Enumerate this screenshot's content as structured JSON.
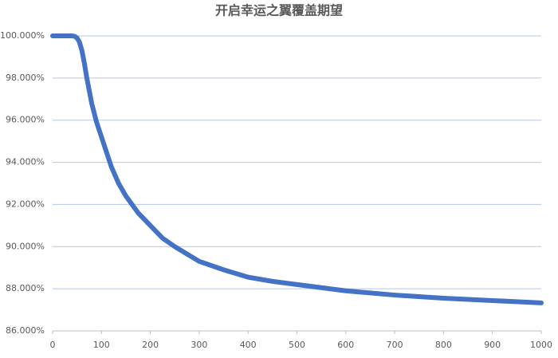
{
  "chart_data": {
    "type": "line",
    "title": "开启幸运之翼覆盖期望",
    "x": [
      0,
      10,
      20,
      30,
      40,
      45,
      50,
      55,
      60,
      65,
      70,
      75,
      80,
      90,
      100,
      110,
      120,
      135,
      150,
      175,
      200,
      225,
      250,
      300,
      350,
      400,
      450,
      500,
      600,
      700,
      800,
      900,
      1000
    ],
    "series": [
      {
        "name": "覆盖期望",
        "color": "#4472c4",
        "values": [
          100,
          100,
          100,
          100,
          100,
          99.98,
          99.9,
          99.7,
          99.3,
          98.7,
          98.0,
          97.4,
          96.8,
          95.9,
          95.2,
          94.5,
          93.8,
          93.0,
          92.4,
          91.6,
          91.0,
          90.4,
          90.0,
          89.3,
          88.9,
          88.55,
          88.35,
          88.2,
          87.9,
          87.7,
          87.55,
          87.44,
          87.33
        ]
      }
    ],
    "xlim": [
      0,
      1000
    ],
    "xticks": [
      0,
      100,
      200,
      300,
      400,
      500,
      600,
      700,
      800,
      900,
      1000
    ],
    "ylim": [
      86,
      100
    ],
    "yticks": [
      {
        "value": 86,
        "label": "86.000%"
      },
      {
        "value": 88,
        "label": "88.000%"
      },
      {
        "value": 90,
        "label": "90.000%"
      },
      {
        "value": 92,
        "label": "92.000%"
      },
      {
        "value": 94,
        "label": "94.000%"
      },
      {
        "value": 96,
        "label": "96.000%"
      },
      {
        "value": 98,
        "label": "98.000%"
      },
      {
        "value": 100,
        "label": "100.000%"
      }
    ],
    "grid": true
  }
}
